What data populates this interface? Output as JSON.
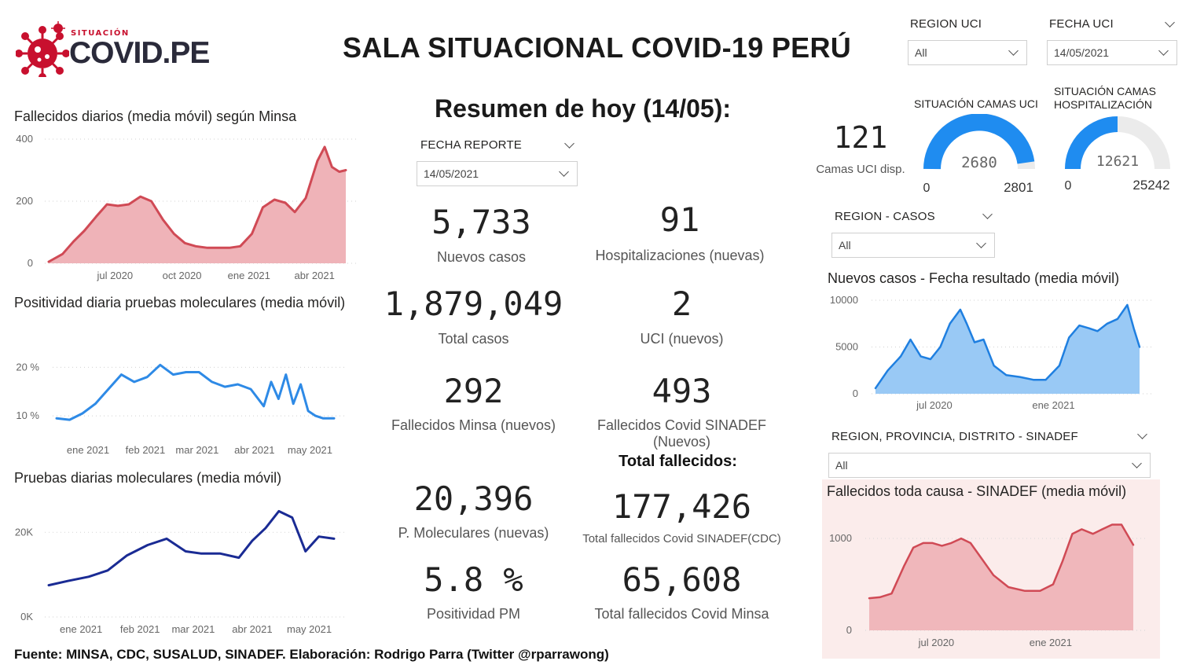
{
  "logo": {
    "small": "SITUACIÓN",
    "big": "COVID.PE"
  },
  "title": "SALA SITUACIONAL COVID-19 PERÚ",
  "slicers": {
    "region_uci": {
      "label": "REGION UCI",
      "value": "All"
    },
    "fecha_uci": {
      "label": "FECHA UCI",
      "value": "14/05/2021"
    },
    "fecha_reporte": {
      "label": "FECHA REPORTE",
      "value": "14/05/2021"
    },
    "region_casos": {
      "label": "REGION - CASOS",
      "value": "All"
    },
    "region_sinadef": {
      "label": "REGION, PROVINCIA, DISTRITO - SINADEF",
      "value": "All"
    }
  },
  "resumen": "Resumen de hoy (14/05):",
  "kpis": {
    "nuevos_casos": {
      "value": "5,733",
      "label": "Nuevos casos"
    },
    "hospitalizaciones": {
      "value": "91",
      "label": "Hospitalizaciones (nuevas)"
    },
    "total_casos": {
      "value": "1,879,049",
      "label": "Total casos"
    },
    "uci_nuevos": {
      "value": "2",
      "label": "UCI (nuevos)"
    },
    "fallecidos_minsa": {
      "value": "292",
      "label": "Fallecidos Minsa (nuevos)"
    },
    "fallecidos_sinadef": {
      "value": "493",
      "label": "Fallecidos Covid SINADEF (Nuevos)"
    },
    "total_fallecidos_title": "Total fallecidos:",
    "pm_nuevas": {
      "value": "20,396",
      "label": "P. Moleculares (nuevas)"
    },
    "total_sinadef": {
      "value": "177,426",
      "label": "Total fallecidos Covid SINADEF(CDC)"
    },
    "positividad": {
      "value": "5.8 %",
      "label": "Positividad PM"
    },
    "total_minsa": {
      "value": "65,608",
      "label": "Total fallecidos Covid Minsa"
    },
    "camas_uci": {
      "value": "121",
      "label": "Camas UCI disp."
    }
  },
  "gauges": {
    "uci": {
      "title": "SITUACIÓN CAMAS UCI",
      "value": 2680,
      "min": 0,
      "max": 2801,
      "value_label": "2680",
      "min_label": "0",
      "max_label": "2801"
    },
    "hosp": {
      "title_line1": "SITUACIÓN CAMAS",
      "title_line2": "HOSPITALIZACIÓN",
      "value": 12621,
      "min": 0,
      "max": 25242,
      "value_label": "12621",
      "min_label": "0",
      "max_label": "25242"
    }
  },
  "colors": {
    "minsa_red": "#d04a55",
    "minsa_fill": "#efb3b8",
    "positividad": "#2e8ae6",
    "pruebas": "#1a2b94",
    "casos_line": "#1f7fe0",
    "casos_fill": "#99c9f5",
    "sinadef_line": "#d04a55",
    "sinadef_fill": "#f0b7bb",
    "sinadef_bg": "#fbeceb",
    "gauge_blue": "#1f8cf0",
    "gauge_grey": "#ebebeb"
  },
  "chart_data": [
    {
      "id": "fallecidos_minsa",
      "type": "area",
      "title": "Fallecidos diarios (media móvil) según Minsa",
      "yticks": [
        "400",
        "200",
        "0"
      ],
      "ylim": [
        0,
        400
      ],
      "xticks": [
        "jul 2020",
        "oct 2020",
        "ene 2021",
        "abr 2021"
      ],
      "x": [
        "2020-04-01",
        "2020-04-20",
        "2020-05-05",
        "2020-05-20",
        "2020-06-05",
        "2020-06-20",
        "2020-07-05",
        "2020-07-20",
        "2020-08-05",
        "2020-08-20",
        "2020-09-05",
        "2020-09-20",
        "2020-10-05",
        "2020-10-20",
        "2020-11-05",
        "2020-11-20",
        "2020-12-05",
        "2020-12-20",
        "2021-01-05",
        "2021-01-20",
        "2021-02-05",
        "2021-02-20",
        "2021-03-05",
        "2021-03-20",
        "2021-04-05",
        "2021-04-15",
        "2021-04-25",
        "2021-05-05",
        "2021-05-14"
      ],
      "values": [
        5,
        30,
        70,
        105,
        150,
        190,
        185,
        190,
        215,
        200,
        140,
        95,
        65,
        55,
        50,
        50,
        50,
        55,
        95,
        180,
        205,
        195,
        165,
        210,
        330,
        375,
        310,
        295,
        300
      ]
    },
    {
      "id": "positividad",
      "type": "line",
      "title": "Positividad diaria pruebas moleculares (media móvil)",
      "yticks": [
        "20 %",
        "10 %"
      ],
      "ylim": [
        5,
        22
      ],
      "xticks": [
        "ene 2021",
        "feb 2021",
        "mar 2021",
        "abr 2021",
        "may 2021"
      ],
      "x": [
        "2020-12-15",
        "2020-12-22",
        "2020-12-29",
        "2021-01-05",
        "2021-01-12",
        "2021-01-19",
        "2021-01-26",
        "2021-02-02",
        "2021-02-09",
        "2021-02-16",
        "2021-02-23",
        "2021-03-02",
        "2021-03-09",
        "2021-03-16",
        "2021-03-23",
        "2021-03-30",
        "2021-04-06",
        "2021-04-10",
        "2021-04-14",
        "2021-04-18",
        "2021-04-22",
        "2021-04-26",
        "2021-04-30",
        "2021-05-04",
        "2021-05-08",
        "2021-05-14"
      ],
      "values": [
        9.5,
        9.2,
        10.5,
        12.5,
        15.5,
        18.5,
        17.0,
        18.0,
        20.5,
        18.5,
        19.0,
        19.0,
        17.0,
        16.0,
        16.5,
        15.5,
        12.0,
        17.0,
        13.5,
        18.5,
        12.5,
        16.5,
        11.0,
        10.0,
        9.5,
        9.5
      ]
    },
    {
      "id": "pruebas",
      "type": "line",
      "title": "Pruebas diarias moleculares (media móvil)",
      "yticks": [
        "20K",
        "0K"
      ],
      "ylim": [
        0,
        26000
      ],
      "xticks": [
        "ene 2021",
        "feb 2021",
        "mar 2021",
        "abr 2021",
        "may 2021"
      ],
      "x": [
        "2020-12-15",
        "2020-12-25",
        "2021-01-05",
        "2021-01-15",
        "2021-01-25",
        "2021-02-05",
        "2021-02-15",
        "2021-02-25",
        "2021-03-05",
        "2021-03-15",
        "2021-03-25",
        "2021-04-01",
        "2021-04-08",
        "2021-04-15",
        "2021-04-22",
        "2021-04-29",
        "2021-05-06",
        "2021-05-14"
      ],
      "values": [
        7500,
        8500,
        9500,
        11000,
        14500,
        17000,
        18500,
        15500,
        15000,
        15000,
        14000,
        18000,
        21000,
        25000,
        23500,
        15500,
        19000,
        18500
      ]
    },
    {
      "id": "nuevos_casos",
      "type": "area",
      "title": "Nuevos casos - Fecha resultado (media móvil)",
      "yticks": [
        "10000",
        "5000",
        "0"
      ],
      "ylim": [
        0,
        10000
      ],
      "xticks": [
        "jul 2020",
        "ene 2021"
      ],
      "x": [
        "2020-04-01",
        "2020-04-20",
        "2020-05-10",
        "2020-05-25",
        "2020-06-10",
        "2020-06-25",
        "2020-07-10",
        "2020-07-25",
        "2020-08-10",
        "2020-08-20",
        "2020-09-01",
        "2020-09-15",
        "2020-10-01",
        "2020-10-20",
        "2020-11-10",
        "2020-12-01",
        "2020-12-20",
        "2021-01-10",
        "2021-01-25",
        "2021-02-10",
        "2021-02-25",
        "2021-03-10",
        "2021-03-25",
        "2021-04-10",
        "2021-04-25",
        "2021-05-05",
        "2021-05-14"
      ],
      "values": [
        600,
        2500,
        4000,
        5800,
        4000,
        3700,
        5000,
        7500,
        9000,
        7500,
        5500,
        5800,
        3000,
        2000,
        1800,
        1500,
        1500,
        3000,
        6000,
        7300,
        7000,
        6700,
        7500,
        8000,
        9500,
        7000,
        5000
      ]
    },
    {
      "id": "sinadef",
      "type": "area",
      "title": "Fallecidos toda causa - SINADEF (media móvil)",
      "yticks": [
        "1000",
        "0"
      ],
      "ylim": [
        0,
        1300
      ],
      "xticks": [
        "jul 2020",
        "ene 2021"
      ],
      "x": [
        "2020-03-15",
        "2020-04-01",
        "2020-04-20",
        "2020-05-10",
        "2020-05-25",
        "2020-06-10",
        "2020-06-25",
        "2020-07-10",
        "2020-07-25",
        "2020-08-10",
        "2020-08-25",
        "2020-09-10",
        "2020-10-01",
        "2020-10-25",
        "2020-11-20",
        "2020-12-15",
        "2021-01-05",
        "2021-01-20",
        "2021-02-05",
        "2021-02-20",
        "2021-03-10",
        "2021-03-25",
        "2021-04-10",
        "2021-04-25",
        "2021-05-14"
      ],
      "values": [
        350,
        360,
        400,
        700,
        900,
        950,
        950,
        920,
        950,
        1000,
        950,
        800,
        600,
        470,
        430,
        430,
        500,
        750,
        1050,
        1100,
        1050,
        1100,
        1150,
        1150,
        930
      ]
    }
  ],
  "footer": "Fuente: MINSA, CDC, SUSALUD, SINADEF. Elaboración: Rodrigo Parra (Twitter @rparrawong)"
}
